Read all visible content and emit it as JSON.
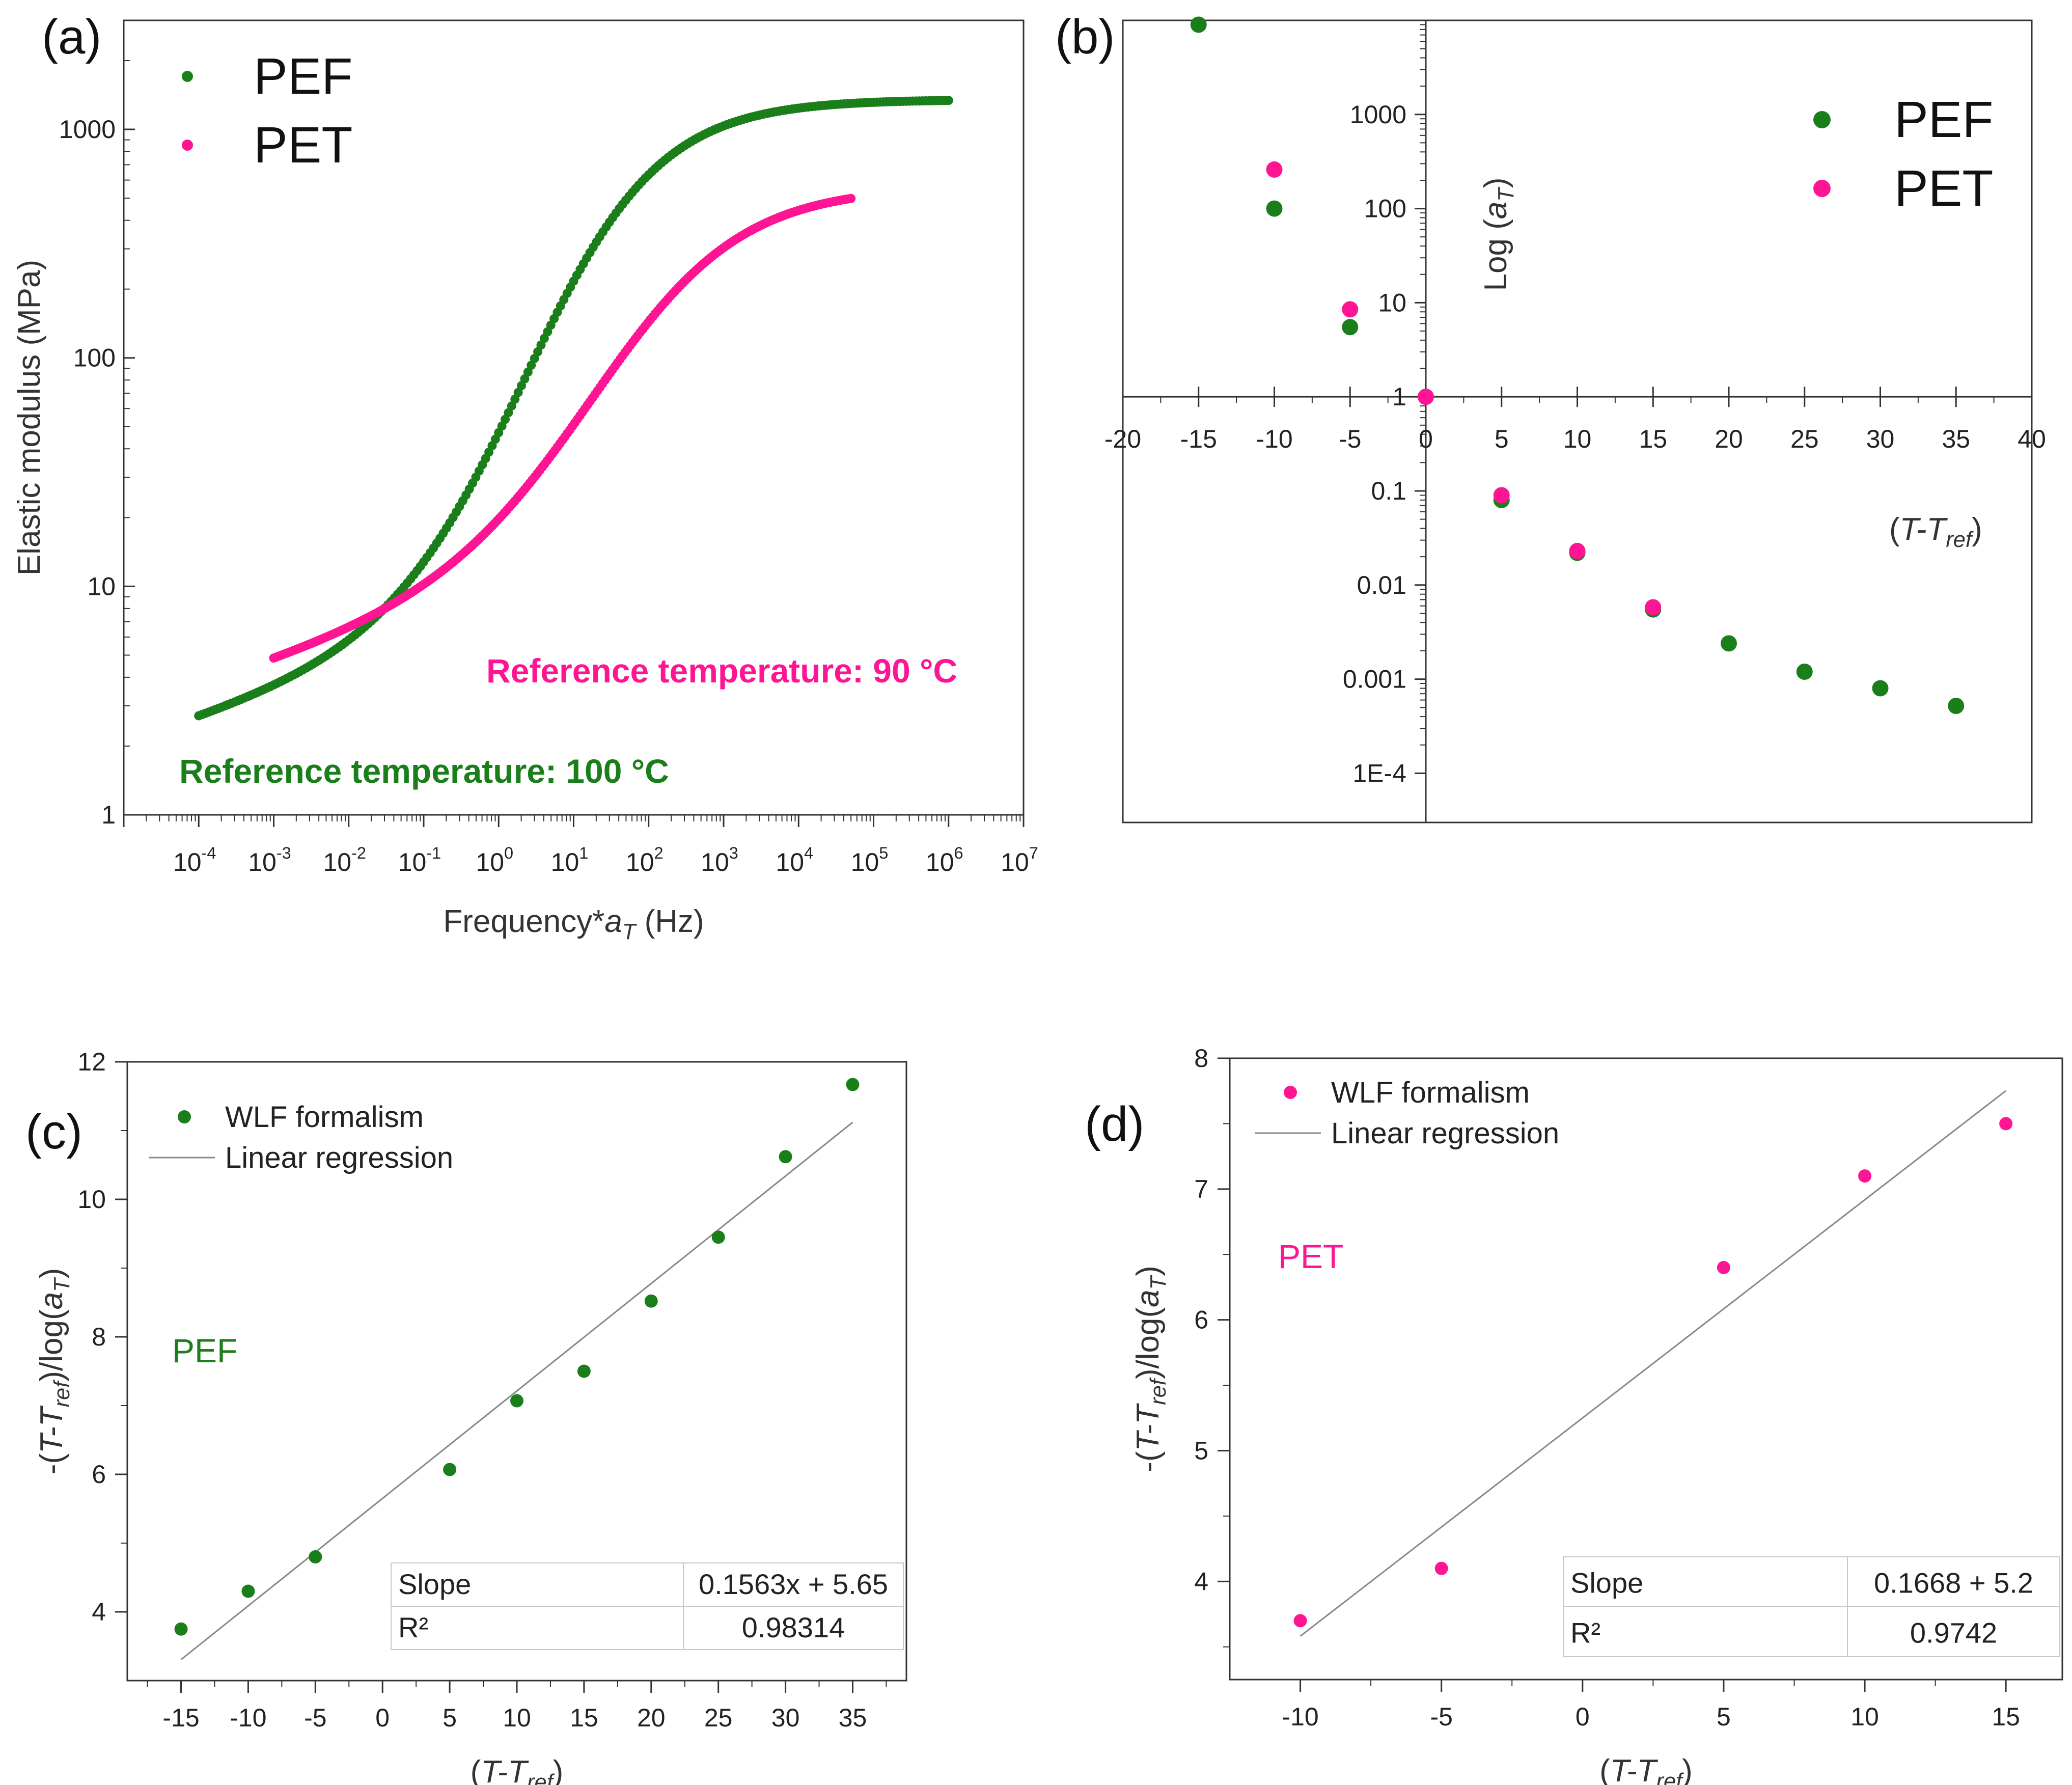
{
  "colors": {
    "PEF": "#1a7f1a",
    "PET": "#ff1493",
    "axis": "#333333",
    "fit": "#888888"
  },
  "chart_data": [
    {
      "panel": "(a)",
      "type": "scatter",
      "xlabel_prefix": "Frequency*",
      "xlabel_var": "a",
      "xlabel_sub": "T",
      "xlabel_suffix": " (Hz)",
      "ylabel": "Elastic modulus (MPa)",
      "xscale": "log",
      "yscale": "log",
      "xlim": [
        1e-05,
        10000000
      ],
      "ylim": [
        1,
        3000
      ],
      "xtick_exponents": [
        -4,
        -3,
        -2,
        -1,
        0,
        1,
        2,
        3,
        4,
        5,
        6,
        7
      ],
      "yticks": [
        1,
        10,
        100,
        1000
      ],
      "ytick_labels": [
        "1",
        "10",
        "100",
        "1000"
      ],
      "legend": [
        "PEF",
        "PET"
      ],
      "legend_position": "top-left",
      "annotations": [
        "Reference temperature: 90 °C",
        "Reference temperature: 100 °C"
      ],
      "series": [
        {
          "name": "PEF",
          "curve": {
            "f_min": 0.0001,
            "f_max": 1000000,
            "E_low": 2.6,
            "E_high": 1350,
            "f_mid": 3,
            "width_decades": 0.9
          }
        },
        {
          "name": "PET",
          "curve": {
            "f_min": 0.001,
            "f_max": 50000,
            "E_low": 4.6,
            "E_high": 560,
            "f_mid": 30,
            "width_decades": 1.0
          }
        }
      ]
    },
    {
      "panel": "(b)",
      "type": "scatter",
      "xlabel_pre": "(",
      "xlabel_var": "T-T",
      "xlabel_sub": "ref",
      "xlabel_post": ")",
      "ylabel_pre": "Log (",
      "ylabel_var": "a",
      "ylabel_sub": "T",
      "ylabel_post": ")",
      "yscale": "log",
      "xlim": [
        -20,
        40
      ],
      "ylim": [
        3e-05,
        10000
      ],
      "xticks": [
        -20,
        -15,
        -10,
        -5,
        0,
        5,
        10,
        15,
        20,
        25,
        30,
        35,
        40
      ],
      "yticks": [
        0.0001,
        0.001,
        0.01,
        0.1,
        1,
        10,
        100,
        1000
      ],
      "ytick_labels": [
        "1E-4",
        "0.001",
        "0.01",
        "0.1",
        "1",
        "10",
        "100",
        "1000"
      ],
      "legend": [
        "PEF",
        "PET"
      ],
      "legend_position": "top-right",
      "series": [
        {
          "name": "PEF",
          "x": [
            -15,
            -10,
            -5,
            0,
            5,
            10,
            15,
            20,
            25,
            30,
            35
          ],
          "y": [
            9000,
            100,
            5.5,
            1,
            0.08,
            0.022,
            0.0055,
            0.0024,
            0.0012,
            0.0008,
            0.00052
          ]
        },
        {
          "name": "PET",
          "x": [
            -10,
            -5,
            0,
            5,
            10,
            15
          ],
          "y": [
            260,
            8.5,
            1,
            0.09,
            0.023,
            0.0058
          ]
        }
      ]
    },
    {
      "panel": "(c)",
      "type": "scatter",
      "xlabel_pre": "(",
      "xlabel_var": "T-T",
      "xlabel_sub": "ref",
      "xlabel_post": ")",
      "ylabel_pre": "-(",
      "ylabel_var": "T-T",
      "ylabel_sub": "ref",
      "ylabel_mid": ")/log(",
      "ylabel_var2": "a",
      "ylabel_sub2": "T",
      "ylabel_post": ")",
      "xlim": [
        -19,
        39
      ],
      "ylim": [
        3,
        12
      ],
      "xticks": [
        -15,
        -10,
        -5,
        0,
        5,
        10,
        15,
        20,
        25,
        30,
        35
      ],
      "yticks": [
        4,
        6,
        8,
        10,
        12
      ],
      "legend": [
        "WLF formalism",
        "Linear regression"
      ],
      "legend_position": "top-left",
      "material_label": "PEF",
      "series": [
        {
          "name": "WLF formalism",
          "x": [
            -15,
            -10,
            -5,
            5,
            10,
            15,
            20,
            25,
            30,
            35
          ],
          "y": [
            3.75,
            4.3,
            4.8,
            6.07,
            7.07,
            7.5,
            8.52,
            9.45,
            10.62,
            11.67
          ]
        },
        {
          "name": "Linear regression",
          "slope": 0.1563,
          "intercept": 5.65,
          "x_range": [
            -15,
            35
          ]
        }
      ],
      "table": {
        "rows": [
          [
            "Slope",
            "0.1563x + 5.65"
          ],
          [
            "R²",
            "0.98314"
          ]
        ]
      }
    },
    {
      "panel": "(d)",
      "type": "scatter",
      "xlabel_pre": "(",
      "xlabel_var": "T-T",
      "xlabel_sub": "ref",
      "xlabel_post": ")",
      "ylabel_pre": "-(",
      "ylabel_var": "T-T",
      "ylabel_sub": "ref",
      "ylabel_mid": ")/log(",
      "ylabel_var2": "a",
      "ylabel_sub2": "T",
      "ylabel_post": ")",
      "xlim": [
        -12.5,
        17
      ],
      "ylim": [
        3.25,
        8
      ],
      "xticks": [
        -10,
        -5,
        0,
        5,
        10,
        15
      ],
      "yticks": [
        4,
        5,
        6,
        7,
        8
      ],
      "legend": [
        "WLF formalism",
        "Linear regression"
      ],
      "legend_position": "top-left",
      "material_label": "PET",
      "series": [
        {
          "name": "WLF formalism",
          "x": [
            -10,
            -5,
            5,
            10,
            15
          ],
          "y": [
            3.7,
            4.1,
            6.4,
            7.1,
            7.5
          ]
        },
        {
          "name": "Linear regression",
          "slope": 0.1668,
          "intercept": 5.25,
          "x_range": [
            -10,
            15
          ]
        }
      ],
      "table": {
        "rows": [
          [
            "Slope",
            "0.1668 + 5.2"
          ],
          [
            "R²",
            "0.9742"
          ]
        ]
      }
    }
  ]
}
